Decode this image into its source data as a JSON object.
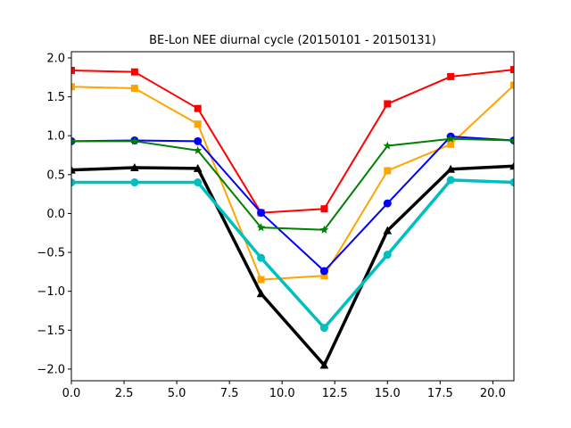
{
  "chart_data": {
    "type": "line",
    "title": "BE-Lon NEE diurnal cycle (20150101 - 20150131)",
    "xlabel": "",
    "ylabel": "",
    "xlim": [
      0,
      21
    ],
    "ylim": [
      -2.15,
      2.08
    ],
    "xticks": [
      0.0,
      2.5,
      5.0,
      7.5,
      10.0,
      12.5,
      15.0,
      17.5,
      20.0
    ],
    "xtick_labels": [
      "0.0",
      "2.5",
      "5.0",
      "7.5",
      "10.0",
      "12.5",
      "15.0",
      "17.5",
      "20.0"
    ],
    "yticks": [
      -2.0,
      -1.5,
      -1.0,
      -0.5,
      0.0,
      0.5,
      1.0,
      1.5,
      2.0
    ],
    "ytick_labels": [
      "−2.0",
      "−1.5",
      "−1.0",
      "−0.5",
      "0.0",
      "0.5",
      "1.0",
      "1.5",
      "2.0"
    ],
    "grid": false,
    "legend": "none",
    "x": [
      0,
      3,
      6,
      9,
      12,
      15,
      18,
      21
    ],
    "series": [
      {
        "color": "#ff0000",
        "marker": "square",
        "width": 2,
        "values": [
          1.84,
          1.82,
          1.35,
          0.01,
          0.06,
          1.41,
          1.76,
          1.85
        ]
      },
      {
        "color": "#ffa500",
        "marker": "square",
        "width": 2,
        "values": [
          1.63,
          1.61,
          1.15,
          -0.85,
          -0.8,
          0.55,
          0.89,
          1.65
        ]
      },
      {
        "color": "#0000ff",
        "marker": "circle",
        "width": 2,
        "values": [
          0.93,
          0.94,
          0.93,
          0.01,
          -0.74,
          0.13,
          0.99,
          0.94
        ]
      },
      {
        "color": "#008000",
        "marker": "star",
        "width": 2,
        "values": [
          0.93,
          0.93,
          0.81,
          -0.18,
          -0.21,
          0.87,
          0.96,
          0.94
        ]
      },
      {
        "color": "#000000",
        "marker": "triangle",
        "width": 3.5,
        "values": [
          0.56,
          0.59,
          0.58,
          -1.03,
          -1.95,
          -0.22,
          0.57,
          0.61
        ]
      },
      {
        "color": "#00bfbf",
        "marker": "circle",
        "width": 3.5,
        "values": [
          0.4,
          0.4,
          0.4,
          -0.57,
          -1.47,
          -0.53,
          0.43,
          0.4
        ]
      }
    ]
  }
}
